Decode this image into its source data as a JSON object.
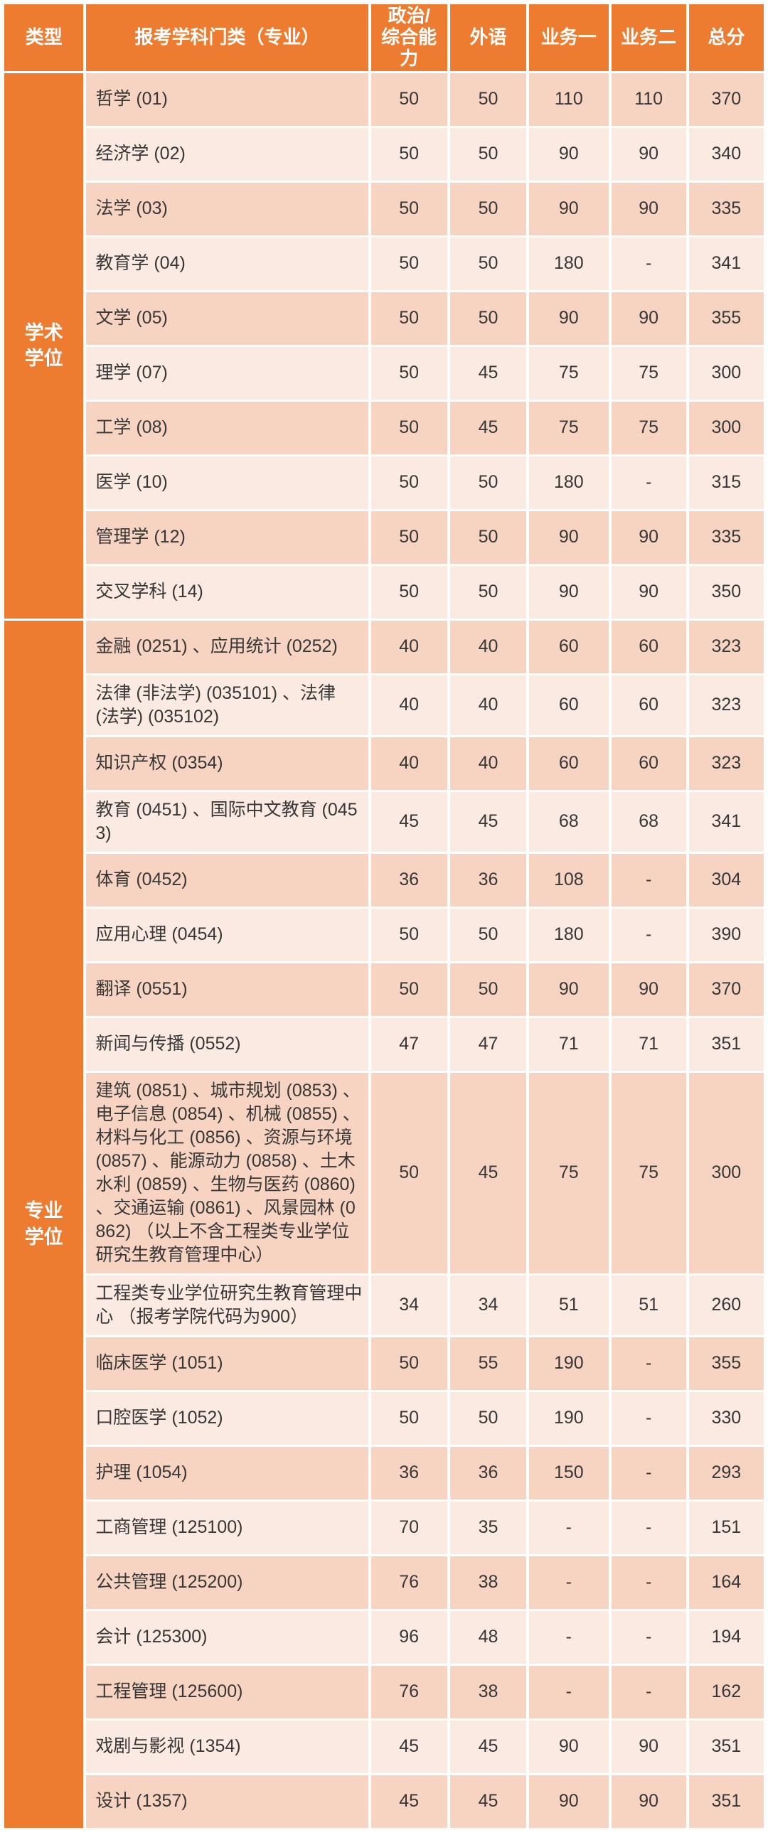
{
  "colors": {
    "accent_orange": "#ED7C31",
    "band_dark": "#F7D3C2",
    "band_light": "#FBEAE1",
    "header_text": "#FFFFFF",
    "body_text": "#373737"
  },
  "table": {
    "columns": {
      "type": "类型",
      "subject": "报考学科门类（专业）",
      "politics": "政治/\n综合能力",
      "foreign": "外语",
      "business1": "业务一",
      "business2": "业务二",
      "total": "总分"
    },
    "sections": [
      {
        "type_label": "学术学位",
        "rows": [
          {
            "subject": "哲学 (01)",
            "scores": [
              "50",
              "50",
              "110",
              "110",
              "370"
            ]
          },
          {
            "subject": "经济学 (02)",
            "scores": [
              "50",
              "50",
              "90",
              "90",
              "340"
            ]
          },
          {
            "subject": "法学 (03)",
            "scores": [
              "50",
              "50",
              "90",
              "90",
              "335"
            ]
          },
          {
            "subject": "教育学 (04)",
            "scores": [
              "50",
              "50",
              "180",
              "-",
              "341"
            ]
          },
          {
            "subject": "文学 (05)",
            "scores": [
              "50",
              "50",
              "90",
              "90",
              "355"
            ]
          },
          {
            "subject": "理学 (07)",
            "scores": [
              "50",
              "45",
              "75",
              "75",
              "300"
            ]
          },
          {
            "subject": "工学 (08)",
            "scores": [
              "50",
              "45",
              "75",
              "75",
              "300"
            ]
          },
          {
            "subject": "医学 (10)",
            "scores": [
              "50",
              "50",
              "180",
              "-",
              "315"
            ]
          },
          {
            "subject": "管理学 (12)",
            "scores": [
              "50",
              "50",
              "90",
              "90",
              "335"
            ]
          },
          {
            "subject": "交叉学科 (14)",
            "scores": [
              "50",
              "50",
              "90",
              "90",
              "350"
            ]
          }
        ]
      },
      {
        "type_label": "专业学位",
        "rows": [
          {
            "subject": "金融 (0251) 、应用统计 (0252)",
            "scores": [
              "40",
              "40",
              "60",
              "60",
              "323"
            ]
          },
          {
            "subject": "法律 (非法学) (035101) 、法律 (法学) (035102)",
            "scores": [
              "40",
              "40",
              "60",
              "60",
              "323"
            ]
          },
          {
            "subject": "知识产权 (0354)",
            "scores": [
              "40",
              "40",
              "60",
              "60",
              "323"
            ]
          },
          {
            "subject": "教育 (0451) 、国际中文教育 (0453)",
            "scores": [
              "45",
              "45",
              "68",
              "68",
              "341"
            ]
          },
          {
            "subject": "体育 (0452)",
            "scores": [
              "36",
              "36",
              "108",
              "-",
              "304"
            ]
          },
          {
            "subject": "应用心理 (0454)",
            "scores": [
              "50",
              "50",
              "180",
              "-",
              "390"
            ]
          },
          {
            "subject": "翻译 (0551)",
            "scores": [
              "50",
              "50",
              "90",
              "90",
              "370"
            ]
          },
          {
            "subject": "新闻与传播 (0552)",
            "scores": [
              "47",
              "47",
              "71",
              "71",
              "351"
            ]
          },
          {
            "subject": "建筑 (0851) 、城市规划 (0853) 、电子信息 (0854) 、机械 (0855) 、材料与化工 (0856) 、资源与环境 (0857) 、能源动力 (0858) 、土木水利 (0859) 、生物与医药 (0860) 、交通运输 (0861) 、风景园林 (0862) （以上不含工程类专业学位研究生教育管理中心）",
            "scores": [
              "50",
              "45",
              "75",
              "75",
              "300"
            ]
          },
          {
            "subject": "工程类专业学位研究生教育管理中心 （报考学院代码为900）",
            "scores": [
              "34",
              "34",
              "51",
              "51",
              "260"
            ]
          },
          {
            "subject": "临床医学 (1051)",
            "scores": [
              "50",
              "55",
              "190",
              "-",
              "355"
            ]
          },
          {
            "subject": "口腔医学 (1052)",
            "scores": [
              "50",
              "50",
              "190",
              "-",
              "330"
            ]
          },
          {
            "subject": "护理 (1054)",
            "scores": [
              "36",
              "36",
              "150",
              "-",
              "293"
            ]
          },
          {
            "subject": "工商管理 (125100)",
            "scores": [
              "70",
              "35",
              "-",
              "-",
              "151"
            ]
          },
          {
            "subject": "公共管理 (125200)",
            "scores": [
              "76",
              "38",
              "-",
              "-",
              "164"
            ]
          },
          {
            "subject": "会计 (125300)",
            "scores": [
              "96",
              "48",
              "-",
              "-",
              "194"
            ]
          },
          {
            "subject": "工程管理 (125600)",
            "scores": [
              "76",
              "38",
              "-",
              "-",
              "162"
            ]
          },
          {
            "subject": "戏剧与影视 (1354)",
            "scores": [
              "45",
              "45",
              "90",
              "90",
              "351"
            ]
          },
          {
            "subject": "设计 (1357)",
            "scores": [
              "45",
              "45",
              "90",
              "90",
              "351"
            ]
          }
        ]
      }
    ]
  }
}
